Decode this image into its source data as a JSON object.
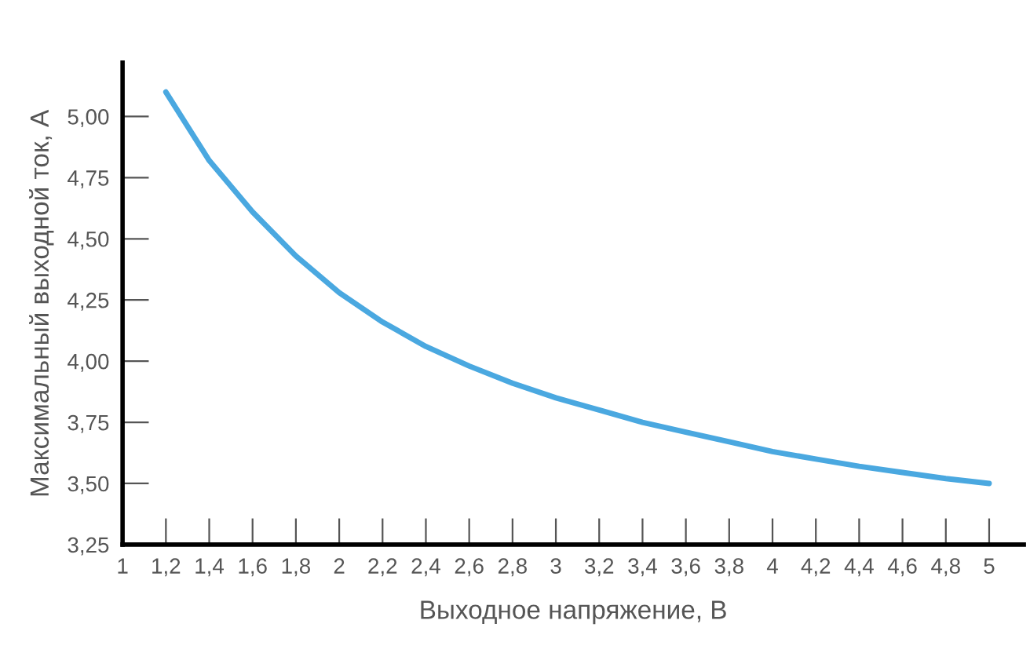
{
  "chart_data": {
    "type": "line",
    "xlabel": "Выходное напряжение, В",
    "ylabel": "Максимальный выходной ток, А",
    "x": [
      1.2,
      1.4,
      1.6,
      1.8,
      2.0,
      2.2,
      2.4,
      2.6,
      2.8,
      3.0,
      3.2,
      3.4,
      3.6,
      3.8,
      4.0,
      4.2,
      4.4,
      4.6,
      4.8,
      5.0
    ],
    "series": [
      {
        "color": "#4aa8e0",
        "values": [
          5.1,
          4.82,
          4.61,
          4.43,
          4.28,
          4.16,
          4.06,
          3.98,
          3.91,
          3.85,
          3.8,
          3.75,
          3.71,
          3.67,
          3.63,
          3.6,
          3.57,
          3.545,
          3.52,
          3.5
        ]
      }
    ],
    "xlim": [
      1,
      5.16
    ],
    "ylim": [
      3.25,
      5.22
    ],
    "xticks": [
      1,
      {
        "value": 1.2,
        "label": "1,2"
      },
      {
        "value": 1.4,
        "label": "1,4"
      },
      {
        "value": 1.6,
        "label": "1,6"
      },
      {
        "value": 1.8,
        "label": "1,8"
      },
      2,
      {
        "value": 2.2,
        "label": "2,2"
      },
      {
        "value": 2.4,
        "label": "2,4"
      },
      {
        "value": 2.6,
        "label": "2,6"
      },
      {
        "value": 2.8,
        "label": "2,8"
      },
      3,
      {
        "value": 3.2,
        "label": "3,2"
      },
      {
        "value": 3.4,
        "label": "3,4"
      },
      {
        "value": 3.6,
        "label": "3,6"
      },
      {
        "value": 3.8,
        "label": "3,8"
      },
      4,
      {
        "value": 4.2,
        "label": "4,2"
      },
      {
        "value": 4.4,
        "label": "4,4"
      },
      {
        "value": 4.6,
        "label": "4,6"
      },
      {
        "value": 4.8,
        "label": "4,8"
      },
      5
    ],
    "yticks": [
      {
        "value": 3.25,
        "label": "3,25"
      },
      {
        "value": 3.5,
        "label": "3,50"
      },
      {
        "value": 3.75,
        "label": "3,75"
      },
      {
        "value": 4.0,
        "label": "4,00"
      },
      {
        "value": 4.25,
        "label": "4,25"
      },
      {
        "value": 4.5,
        "label": "4,50"
      },
      {
        "value": 4.75,
        "label": "4,75"
      },
      {
        "value": 5.0,
        "label": "5,00"
      }
    ],
    "grid": false,
    "legend": false,
    "marker": "none",
    "line_style": "solid"
  }
}
